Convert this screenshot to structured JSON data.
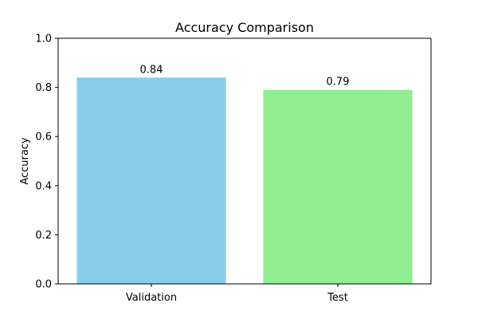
{
  "chart_data": {
    "type": "bar",
    "title": "Accuracy Comparison",
    "xlabel": "",
    "ylabel": "Accuracy",
    "ylim": [
      0,
      1.0
    ],
    "yticks": [
      "0.0",
      "0.2",
      "0.4",
      "0.6",
      "0.8",
      "1.0"
    ],
    "categories": [
      "Validation",
      "Test"
    ],
    "values": [
      0.84,
      0.79
    ],
    "value_labels": [
      "0.84",
      "0.79"
    ],
    "colors": [
      "#87ceeb",
      "#90ee90"
    ],
    "grid": false,
    "legend": false
  }
}
